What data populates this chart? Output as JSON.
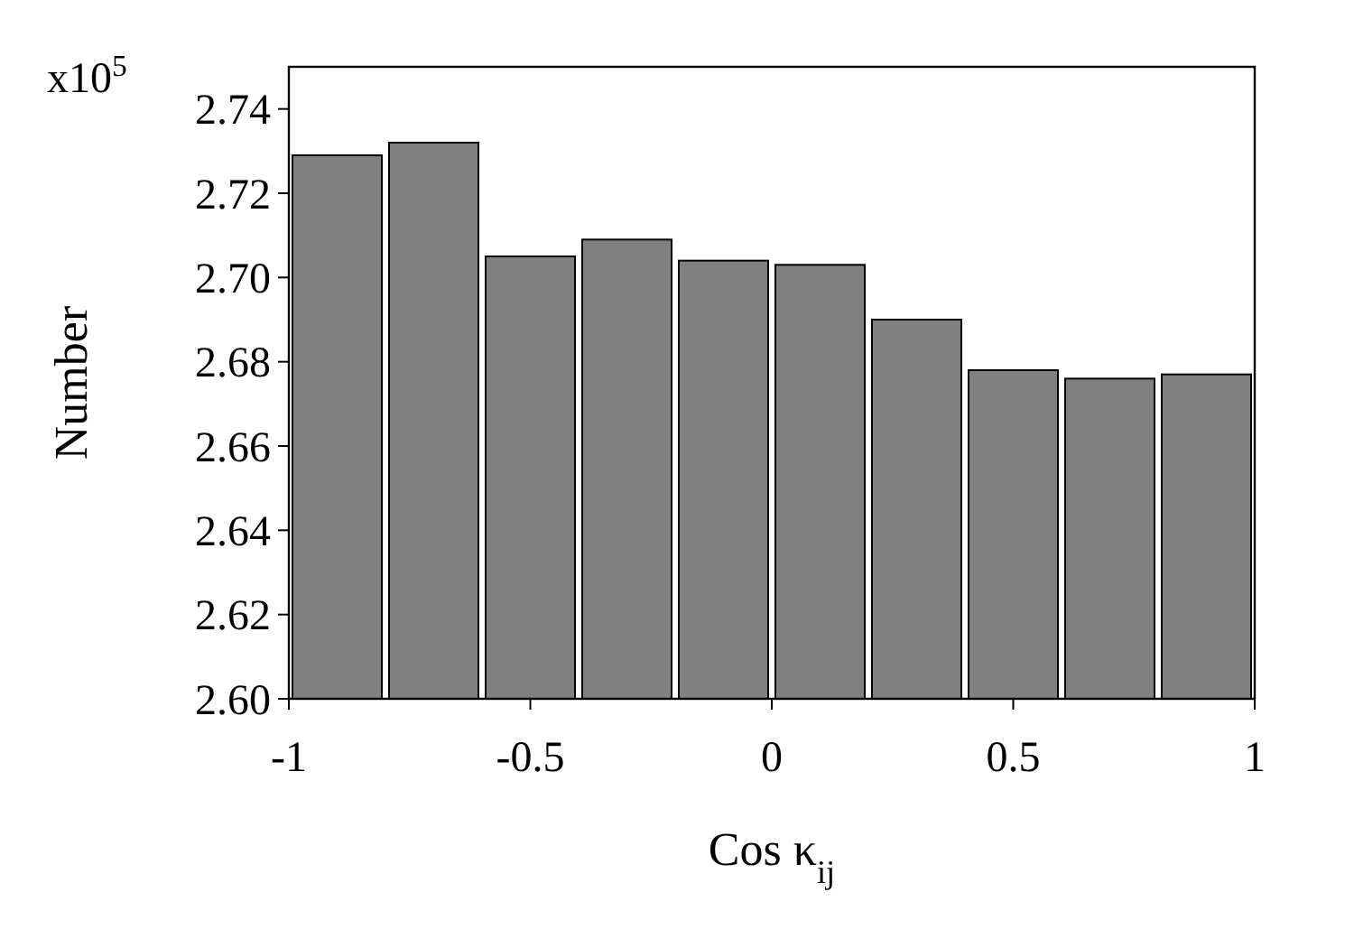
{
  "chart_data": {
    "type": "histogram",
    "xlabel": "Cos κ$_{ij}$",
    "ylabel": "Number",
    "annotations": [
      "x10$^{5}$"
    ],
    "bins": [
      -1,
      -0.8,
      -0.6,
      -0.4,
      -0.2,
      0,
      0.2,
      0.4,
      0.6,
      0.8,
      1
    ],
    "values": [
      2.729,
      2.732,
      2.705,
      2.709,
      2.704,
      2.703,
      2.69,
      2.678,
      2.676,
      2.677
    ],
    "color": "#808080",
    "xlim": [
      -1,
      1
    ],
    "xticks": [
      -1,
      -0.5,
      0,
      0.5,
      1
    ],
    "ylim": [
      2.6,
      2.75
    ],
    "yticks": [
      {
        "value": 2.6,
        "label": "2.60"
      },
      {
        "value": 2.62,
        "label": "2.62"
      },
      {
        "value": 2.64,
        "label": "2.64"
      },
      {
        "value": 2.66,
        "label": "2.66"
      },
      {
        "value": 2.68,
        "label": "2.68"
      },
      {
        "value": 2.7,
        "label": "2.70"
      },
      {
        "value": 2.72,
        "label": "2.72"
      },
      {
        "value": 2.74,
        "label": "2.74"
      }
    ],
    "grid": false
  }
}
